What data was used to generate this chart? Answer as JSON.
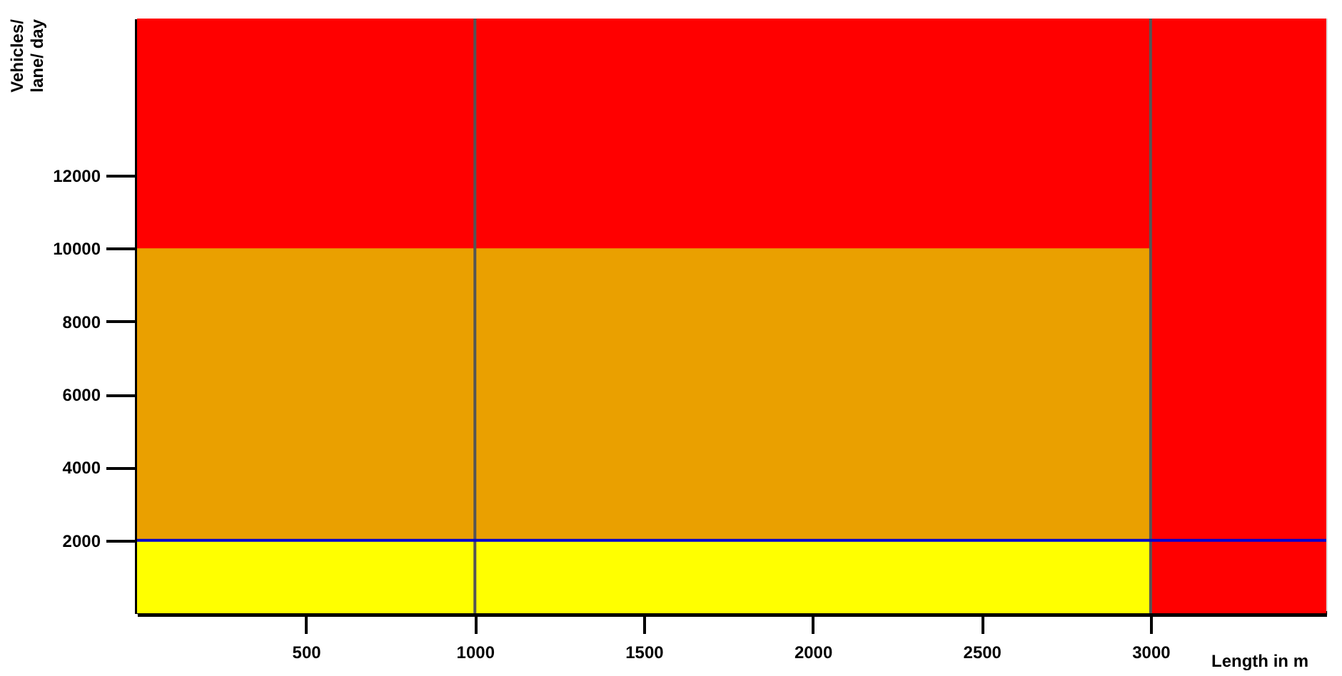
{
  "chart_data": {
    "type": "area",
    "stacked": true,
    "xlabel": "Length in m",
    "ylabel": "Vehicles/ lane/ day",
    "x": [
      0,
      3000,
      3000,
      3520
    ],
    "series": [
      {
        "color": "#ffff00",
        "values": [
          2000,
          2000,
          0,
          0
        ]
      },
      {
        "color": "#eaa000",
        "values": [
          8000,
          8000,
          0,
          0
        ]
      }
    ],
    "xlim": [
      0,
      3520
    ],
    "xticks": [
      500,
      1000,
      1500,
      2000,
      2500,
      3000
    ],
    "ylim": [
      0,
      16300
    ],
    "yticks": [
      2000,
      4000,
      6000,
      8000,
      10000,
      12000
    ],
    "bands": [
      {
        "axis": "x",
        "from": 0,
        "to": 3520,
        "color": "#ff0000"
      }
    ],
    "ref_lines": [
      {
        "axis": "x",
        "value": 1000,
        "color": "#555555"
      },
      {
        "axis": "x",
        "value": 3000,
        "color": "#555555"
      },
      {
        "axis": "y",
        "value": 2000,
        "color": "#0000cc"
      }
    ],
    "marker": "none"
  }
}
